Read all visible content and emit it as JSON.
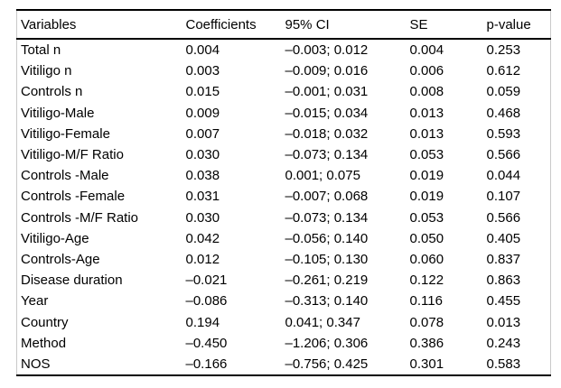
{
  "table": {
    "columns": [
      "Variables",
      "Coefficients",
      "95% CI",
      "SE",
      "p-value"
    ],
    "rows": [
      [
        "Total n",
        "0.004",
        "–0.003; 0.012",
        "0.004",
        "0.253"
      ],
      [
        "Vitiligo n",
        "0.003",
        "–0.009; 0.016",
        "0.006",
        "0.612"
      ],
      [
        "Controls n",
        "0.015",
        "–0.001; 0.031",
        "0.008",
        "0.059"
      ],
      [
        "Vitiligo-Male",
        "0.009",
        "–0.015; 0.034",
        "0.013",
        "0.468"
      ],
      [
        "Vitiligo-Female",
        "0.007",
        "–0.018; 0.032",
        "0.013",
        "0.593"
      ],
      [
        "Vitiligo-M/F Ratio",
        "0.030",
        "–0.073; 0.134",
        "0.053",
        "0.566"
      ],
      [
        "Controls -Male",
        "0.038",
        "0.001; 0.075",
        "0.019",
        "0.044"
      ],
      [
        "Controls -Female",
        "0.031",
        "–0.007; 0.068",
        "0.019",
        "0.107"
      ],
      [
        "Controls -M/F Ratio",
        "0.030",
        "–0.073; 0.134",
        "0.053",
        "0.566"
      ],
      [
        "Vitiligo-Age",
        "0.042",
        "–0.056; 0.140",
        "0.050",
        "0.405"
      ],
      [
        "Controls-Age",
        "0.012",
        "–0.105; 0.130",
        "0.060",
        "0.837"
      ],
      [
        "Disease duration",
        "–0.021",
        "–0.261; 0.219",
        "0.122",
        "0.863"
      ],
      [
        "Year",
        "–0.086",
        "–0.313; 0.140",
        "0.116",
        "0.455"
      ],
      [
        "Country",
        "0.194",
        "0.041; 0.347",
        "0.078",
        "0.013"
      ],
      [
        "Method",
        "–0.450",
        "–1.206; 0.306",
        "0.386",
        "0.243"
      ],
      [
        "NOS",
        "–0.166",
        "–0.756; 0.425",
        "0.301",
        "0.583"
      ]
    ]
  }
}
